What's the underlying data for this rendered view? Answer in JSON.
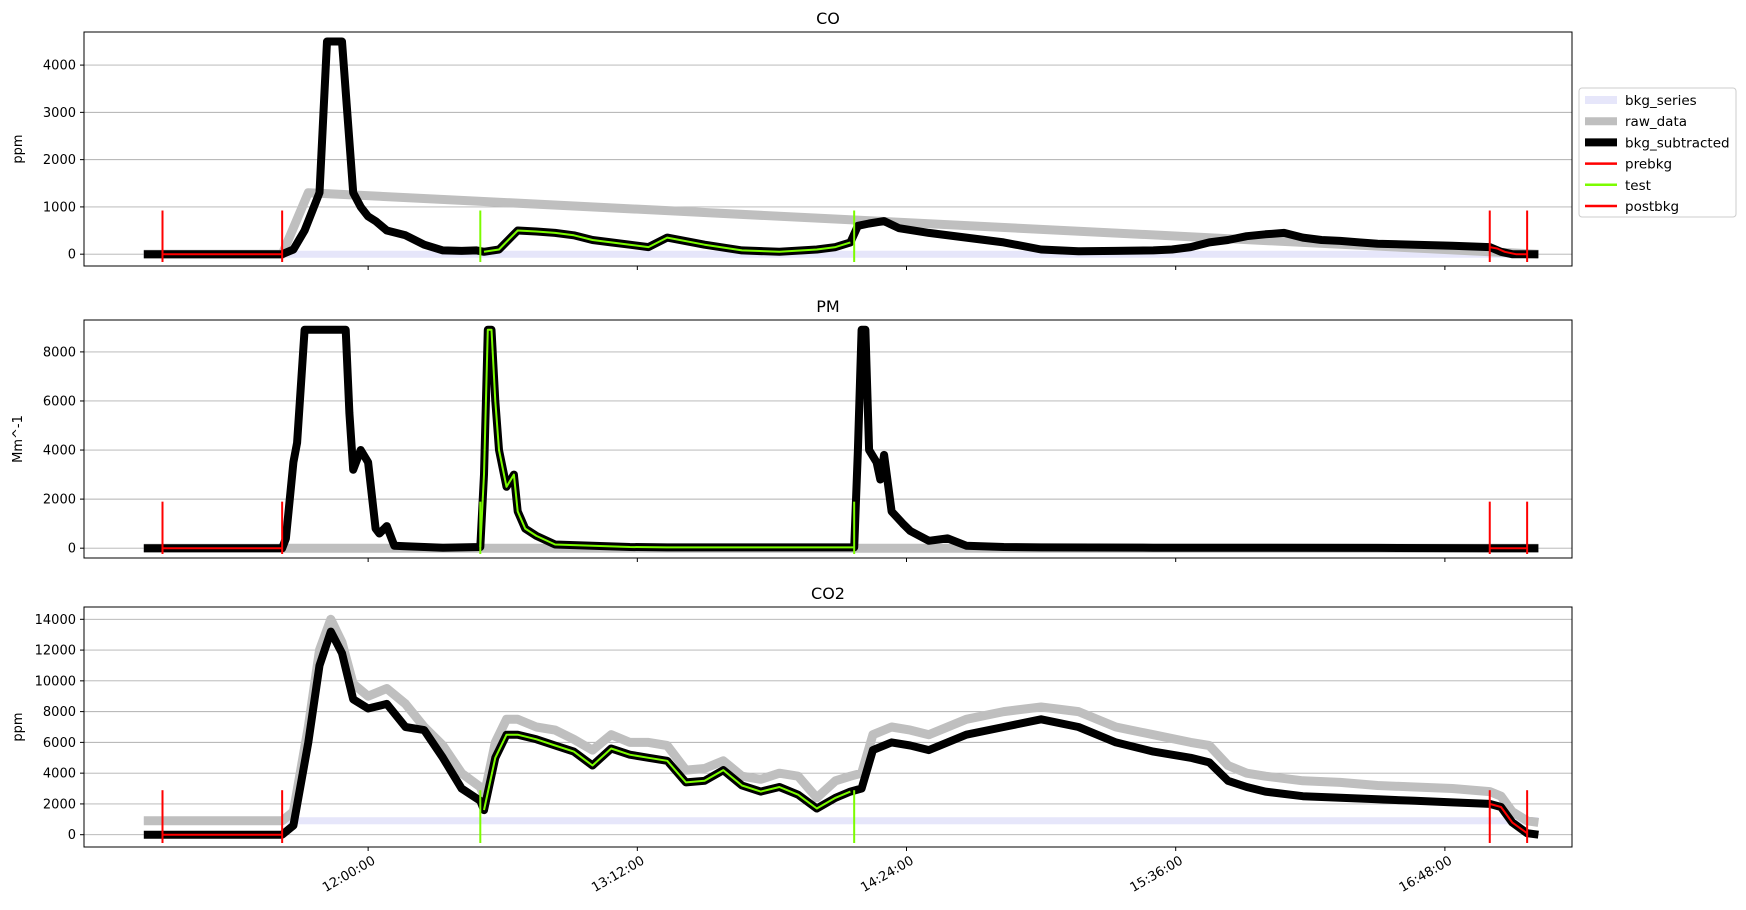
{
  "chart_data": [
    {
      "type": "line",
      "title": "CO",
      "ylabel": "ppm",
      "ylim": [
        -250,
        4700
      ],
      "yticks": [
        0,
        1000,
        2000,
        3000,
        4000
      ],
      "xlim": [
        "10:44:00",
        "17:22:00"
      ],
      "grid": "horizontal",
      "markers": {
        "prebkg": [
          "11:05:00",
          "11:37:00"
        ],
        "test": [
          "12:30:00",
          "14:10:00"
        ],
        "postbkg": [
          "17:00:00",
          "17:10:00"
        ]
      },
      "series": [
        {
          "name": "bkg_series",
          "color": "#e6e6fa",
          "x": [
            "11:00:00",
            "17:13:00"
          ],
          "y": [
            0,
            0
          ]
        },
        {
          "name": "raw_data",
          "color": "#bfbfbf",
          "x": [
            "11:00:00",
            "11:37:00",
            "11:44:00",
            "17:13:00"
          ],
          "y": [
            0,
            0,
            1300,
            0
          ]
        },
        {
          "name": "bkg_subtracted",
          "color": "#000000",
          "x": [
            "11:00:00",
            "11:05:00",
            "11:37:00",
            "11:40:00",
            "11:43:00",
            "11:47:00",
            "11:49:00",
            "11:50:00",
            "11:53:00",
            "11:56:00",
            "11:58:00",
            "12:00:00",
            "12:02:00",
            "12:05:00",
            "12:10:00",
            "12:15:00",
            "12:20:00",
            "12:25:00",
            "12:29:00",
            "12:31:00",
            "12:35:00",
            "12:40:00",
            "12:45:00",
            "12:50:00",
            "12:55:00",
            "13:00:00",
            "13:05:00",
            "13:10:00",
            "13:15:00",
            "13:20:00",
            "13:30:00",
            "13:40:00",
            "13:50:00",
            "14:00:00",
            "14:05:00",
            "14:09:00",
            "14:11:00",
            "14:14:00",
            "14:18:00",
            "14:22:00",
            "14:30:00",
            "14:40:00",
            "14:50:00",
            "15:00:00",
            "15:10:00",
            "15:20:00",
            "15:30:00",
            "15:35:00",
            "15:40:00",
            "15:45:00",
            "15:50:00",
            "15:55:00",
            "16:00:00",
            "16:05:00",
            "16:10:00",
            "16:15:00",
            "16:20:00",
            "16:25:00",
            "16:30:00",
            "16:40:00",
            "16:50:00",
            "17:00:00",
            "17:03:00",
            "17:06:00",
            "17:10:00",
            "17:13:00"
          ],
          "y": [
            0,
            0,
            0,
            100,
            500,
            1300,
            4500,
            4500,
            4500,
            1300,
            1000,
            800,
            700,
            500,
            400,
            200,
            80,
            70,
            80,
            50,
            100,
            500,
            480,
            450,
            400,
            300,
            250,
            200,
            150,
            350,
            200,
            80,
            50,
            100,
            150,
            250,
            600,
            650,
            700,
            550,
            450,
            350,
            250,
            100,
            60,
            70,
            80,
            100,
            150,
            250,
            300,
            380,
            420,
            450,
            350,
            300,
            280,
            250,
            220,
            200,
            180,
            150,
            50,
            0,
            0,
            0
          ]
        },
        {
          "name": "prebkg",
          "color": "#ff0000",
          "x": [
            "11:05:00",
            "11:37:00"
          ],
          "y": [
            0,
            0
          ]
        },
        {
          "name": "test",
          "color": "#7cfc00",
          "x": [
            "12:31:00",
            "12:35:00",
            "12:40:00",
            "12:45:00",
            "12:50:00",
            "12:55:00",
            "13:00:00",
            "13:05:00",
            "13:10:00",
            "13:15:00",
            "13:20:00",
            "13:30:00",
            "13:40:00",
            "13:50:00",
            "14:00:00",
            "14:05:00",
            "14:09:00"
          ],
          "y": [
            50,
            100,
            500,
            480,
            450,
            400,
            300,
            250,
            200,
            150,
            350,
            200,
            80,
            50,
            100,
            150,
            250
          ]
        },
        {
          "name": "postbkg",
          "color": "#ff0000",
          "x": [
            "17:00:00",
            "17:02:00",
            "17:04:00",
            "17:07:00",
            "17:10:00"
          ],
          "y": [
            150,
            120,
            50,
            0,
            0
          ]
        }
      ]
    },
    {
      "type": "line",
      "title": "PM",
      "ylabel": "Mm^-1",
      "ylim": [
        -400,
        9300
      ],
      "yticks": [
        0,
        2000,
        4000,
        6000,
        8000
      ],
      "xlim": [
        "10:44:00",
        "17:22:00"
      ],
      "grid": "horizontal",
      "markers": {
        "prebkg": [
          "11:05:00",
          "11:37:00"
        ],
        "test": [
          "12:30:00",
          "14:10:00"
        ],
        "postbkg": [
          "17:00:00",
          "17:10:00"
        ]
      },
      "series": [
        {
          "name": "bkg_series",
          "color": "#e6e6fa",
          "x": [
            "11:00:00",
            "17:13:00"
          ],
          "y": [
            0,
            0
          ]
        },
        {
          "name": "raw_data",
          "color": "#bfbfbf",
          "x": [
            "11:00:00",
            "17:13:00"
          ],
          "y": [
            0,
            0
          ]
        },
        {
          "name": "bkg_subtracted",
          "color": "#000000",
          "x": [
            "11:00:00",
            "11:37:00",
            "11:38:00",
            "11:40:00",
            "11:41:00",
            "11:43:00",
            "11:54:00",
            "11:55:00",
            "11:56:00",
            "11:58:00",
            "12:00:00",
            "12:02:00",
            "12:03:00",
            "12:05:00",
            "12:07:00",
            "12:10:00",
            "12:20:00",
            "12:30:00",
            "12:31:00",
            "12:32:00",
            "12:33:00",
            "12:34:00",
            "12:35:00",
            "12:37:00",
            "12:39:00",
            "12:40:00",
            "12:42:00",
            "12:45:00",
            "12:50:00",
            "13:00:00",
            "13:10:00",
            "13:20:00",
            "13:40:00",
            "14:00:00",
            "14:10:00",
            "14:11:00",
            "14:12:00",
            "14:13:00",
            "14:14:00",
            "14:16:00",
            "14:17:00",
            "14:18:00",
            "14:20:00",
            "14:23:00",
            "14:25:00",
            "14:30:00",
            "14:35:00",
            "14:40:00",
            "14:50:00",
            "15:00:00",
            "15:30:00",
            "16:00:00",
            "16:30:00",
            "17:00:00",
            "17:13:00"
          ],
          "y": [
            0,
            0,
            400,
            3500,
            4300,
            8900,
            8900,
            5500,
            3200,
            4000,
            3500,
            800,
            600,
            900,
            100,
            80,
            20,
            50,
            3000,
            8900,
            8900,
            6000,
            4000,
            2500,
            3000,
            1500,
            800,
            500,
            150,
            100,
            50,
            30,
            30,
            30,
            30,
            4000,
            8900,
            8900,
            4000,
            3500,
            2800,
            3800,
            1500,
            1000,
            700,
            300,
            400,
            100,
            50,
            30,
            20,
            20,
            10,
            0,
            0
          ]
        },
        {
          "name": "prebkg",
          "color": "#ff0000",
          "x": [
            "11:05:00",
            "11:37:00"
          ],
          "y": [
            0,
            0
          ]
        },
        {
          "name": "test",
          "color": "#7cfc00",
          "x": [
            "12:30:00",
            "12:31:00",
            "12:32:00",
            "12:33:00",
            "12:34:00",
            "12:35:00",
            "12:37:00",
            "12:39:00",
            "12:40:00",
            "12:42:00",
            "12:45:00",
            "12:50:00",
            "13:00:00",
            "13:10:00",
            "13:20:00",
            "13:40:00",
            "14:00:00",
            "14:10:00"
          ],
          "y": [
            50,
            3000,
            8900,
            8900,
            6000,
            4000,
            2500,
            3000,
            1500,
            800,
            500,
            150,
            100,
            50,
            30,
            30,
            30,
            30
          ]
        },
        {
          "name": "postbkg",
          "color": "#ff0000",
          "x": [
            "17:00:00",
            "17:10:00"
          ],
          "y": [
            0,
            0
          ]
        }
      ]
    },
    {
      "type": "line",
      "title": "CO2",
      "ylabel": "ppm",
      "ylim": [
        -800,
        14800
      ],
      "yticks": [
        0,
        2000,
        4000,
        6000,
        8000,
        10000,
        12000,
        14000
      ],
      "xlim": [
        "10:44:00",
        "17:22:00"
      ],
      "grid": "horizontal",
      "xticks": [
        "12:00:00",
        "13:12:00",
        "14:24:00",
        "15:36:00",
        "16:48:00"
      ],
      "markers": {
        "prebkg": [
          "11:05:00",
          "11:37:00"
        ],
        "test": [
          "12:30:00",
          "14:10:00"
        ],
        "postbkg": [
          "17:00:00",
          "17:10:00"
        ]
      },
      "series": [
        {
          "name": "bkg_series",
          "color": "#e6e6fa",
          "x": [
            "11:00:00",
            "17:13:00"
          ],
          "y": [
            900,
            900
          ]
        },
        {
          "name": "raw_data",
          "color": "#bfbfbf",
          "x": [
            "11:00:00",
            "11:37:00",
            "11:40:00",
            "11:44:00",
            "11:47:00",
            "11:50:00",
            "11:53:00",
            "11:56:00",
            "12:00:00",
            "12:05:00",
            "12:10:00",
            "12:15:00",
            "12:20:00",
            "12:25:00",
            "12:30:00",
            "12:31:00",
            "12:34:00",
            "12:37:00",
            "12:40:00",
            "12:45:00",
            "12:50:00",
            "12:55:00",
            "13:00:00",
            "13:05:00",
            "13:10:00",
            "13:15:00",
            "13:20:00",
            "13:25:00",
            "13:30:00",
            "13:35:00",
            "13:40:00",
            "13:45:00",
            "13:50:00",
            "13:55:00",
            "14:00:00",
            "14:05:00",
            "14:09:00",
            "14:12:00",
            "14:15:00",
            "14:20:00",
            "14:25:00",
            "14:30:00",
            "14:40:00",
            "14:50:00",
            "15:00:00",
            "15:10:00",
            "15:20:00",
            "15:30:00",
            "15:40:00",
            "15:45:00",
            "15:50:00",
            "15:55:00",
            "16:00:00",
            "16:10:00",
            "16:20:00",
            "16:30:00",
            "16:40:00",
            "16:50:00",
            "17:00:00",
            "17:03:00",
            "17:06:00",
            "17:10:00",
            "17:13:00"
          ],
          "y": [
            900,
            900,
            1500,
            7000,
            12000,
            14000,
            12500,
            9800,
            9000,
            9500,
            8500,
            7000,
            5800,
            4000,
            3100,
            2500,
            6000,
            7500,
            7500,
            7000,
            6800,
            6200,
            5500,
            6500,
            6000,
            6000,
            5800,
            4200,
            4300,
            4800,
            3800,
            3600,
            4000,
            3800,
            2400,
            3500,
            3800,
            4000,
            6500,
            7000,
            6800,
            6500,
            7500,
            8000,
            8300,
            8000,
            7000,
            6500,
            6000,
            5800,
            4500,
            4000,
            3800,
            3500,
            3400,
            3200,
            3100,
            3000,
            2800,
            2500,
            1500,
            900,
            800
          ]
        },
        {
          "name": "bkg_subtracted",
          "color": "#000000",
          "x": [
            "11:00:00",
            "11:37:00",
            "11:40:00",
            "11:44:00",
            "11:47:00",
            "11:50:00",
            "11:53:00",
            "11:56:00",
            "12:00:00",
            "12:05:00",
            "12:10:00",
            "12:15:00",
            "12:20:00",
            "12:25:00",
            "12:30:00",
            "12:31:00",
            "12:34:00",
            "12:37:00",
            "12:40:00",
            "12:45:00",
            "12:50:00",
            "12:55:00",
            "13:00:00",
            "13:05:00",
            "13:10:00",
            "13:15:00",
            "13:20:00",
            "13:25:00",
            "13:30:00",
            "13:35:00",
            "13:40:00",
            "13:45:00",
            "13:50:00",
            "13:55:00",
            "14:00:00",
            "14:05:00",
            "14:09:00",
            "14:12:00",
            "14:15:00",
            "14:20:00",
            "14:25:00",
            "14:30:00",
            "14:40:00",
            "14:50:00",
            "15:00:00",
            "15:10:00",
            "15:20:00",
            "15:30:00",
            "15:40:00",
            "15:45:00",
            "15:50:00",
            "15:55:00",
            "16:00:00",
            "16:10:00",
            "16:20:00",
            "16:30:00",
            "16:40:00",
            "16:50:00",
            "17:00:00",
            "17:03:00",
            "17:06:00",
            "17:10:00",
            "17:13:00"
          ],
          "y": [
            0,
            0,
            600,
            6000,
            11000,
            13200,
            11800,
            8800,
            8200,
            8500,
            7000,
            6800,
            5000,
            3000,
            2200,
            1600,
            5000,
            6500,
            6500,
            6200,
            5800,
            5400,
            4500,
            5600,
            5200,
            5000,
            4800,
            3400,
            3500,
            4200,
            3200,
            2800,
            3100,
            2600,
            1700,
            2400,
            2800,
            3000,
            5500,
            6000,
            5800,
            5500,
            6500,
            7000,
            7500,
            7000,
            6000,
            5400,
            5000,
            4700,
            3500,
            3100,
            2800,
            2500,
            2400,
            2300,
            2200,
            2100,
            2000,
            1800,
            800,
            100,
            0
          ]
        },
        {
          "name": "prebkg",
          "color": "#ff0000",
          "x": [
            "11:05:00",
            "11:37:00"
          ],
          "y": [
            0,
            0
          ]
        },
        {
          "name": "test",
          "color": "#7cfc00",
          "x": [
            "12:31:00",
            "12:34:00",
            "12:37:00",
            "12:40:00",
            "12:45:00",
            "12:50:00",
            "12:55:00",
            "13:00:00",
            "13:05:00",
            "13:10:00",
            "13:15:00",
            "13:20:00",
            "13:25:00",
            "13:30:00",
            "13:35:00",
            "13:40:00",
            "13:45:00",
            "13:50:00",
            "13:55:00",
            "14:00:00",
            "14:05:00",
            "14:09:00"
          ],
          "y": [
            1600,
            5000,
            6500,
            6500,
            6200,
            5800,
            5400,
            4500,
            5600,
            5200,
            5000,
            4800,
            3400,
            3500,
            4200,
            3200,
            2800,
            3100,
            2600,
            1700,
            2400,
            2800
          ]
        },
        {
          "name": "postbkg",
          "color": "#ff0000",
          "x": [
            "17:00:00",
            "17:03:00",
            "17:06:00",
            "17:10:00"
          ],
          "y": [
            2000,
            1800,
            800,
            100
          ]
        }
      ]
    }
  ],
  "legend": {
    "placement": "right of top panel",
    "items": [
      {
        "name": "bkg_series",
        "color": "#e6e6fa",
        "width": "thick"
      },
      {
        "name": "raw_data",
        "color": "#bfbfbf",
        "width": "thick"
      },
      {
        "name": "bkg_subtracted",
        "color": "#000000",
        "width": "thick"
      },
      {
        "name": "prebkg",
        "color": "#ff0000",
        "width": "thin"
      },
      {
        "name": "test",
        "color": "#7cfc00",
        "width": "thin"
      },
      {
        "name": "postbkg",
        "color": "#ff0000",
        "width": "thin"
      }
    ]
  }
}
